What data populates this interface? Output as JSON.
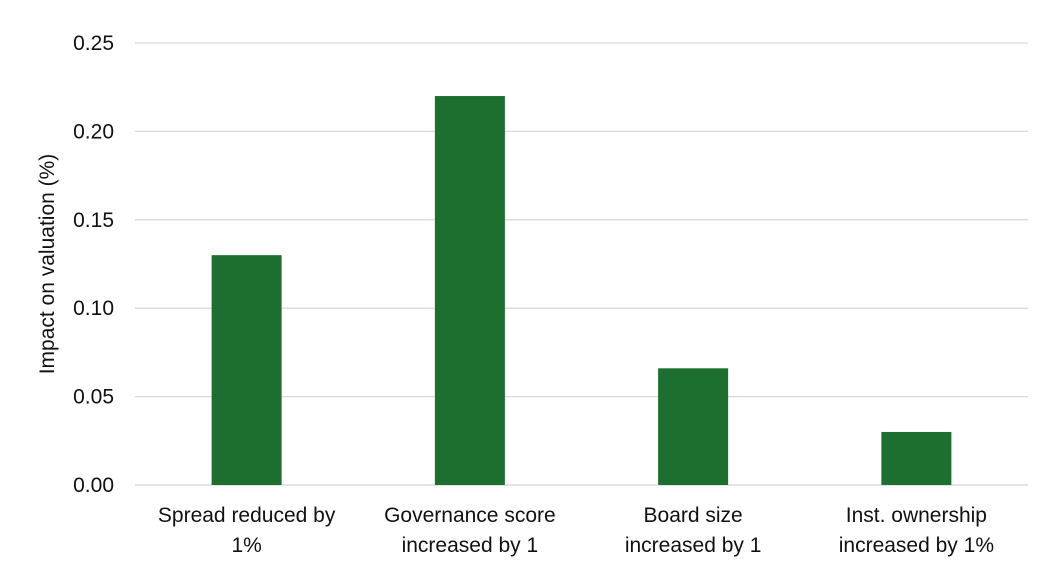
{
  "chart_data": {
    "type": "bar",
    "title": "",
    "xlabel": "",
    "ylabel": "Impact on valuation (%)",
    "categories": [
      [
        "Spread reduced by",
        "1%"
      ],
      [
        "Governance score",
        "increased by 1"
      ],
      [
        "Board size",
        "increased by 1"
      ],
      [
        "Inst. ownership",
        "increased by 1%"
      ]
    ],
    "values": [
      0.13,
      0.22,
      0.066,
      0.03
    ],
    "ylim": [
      0,
      0.25
    ],
    "yticks": [
      "0.00",
      "0.05",
      "0.10",
      "0.15",
      "0.20",
      "0.25"
    ],
    "grid": true,
    "legend": "none",
    "colors": {
      "bar": "#1d6f2f",
      "grid": "#d9d9d9",
      "text": "#111111"
    }
  }
}
